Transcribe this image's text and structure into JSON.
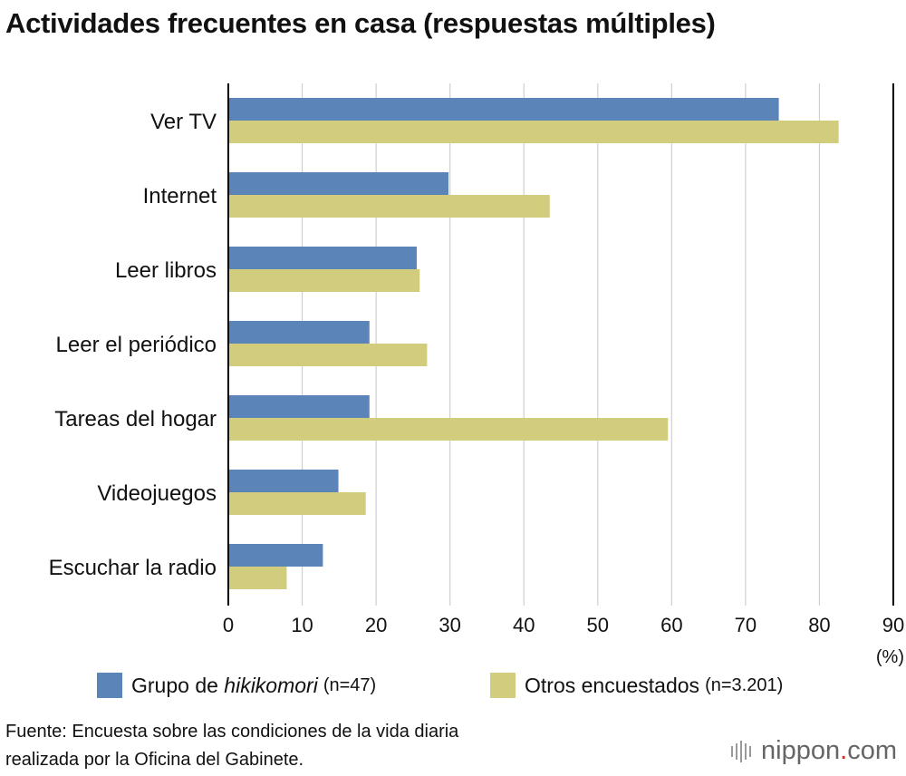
{
  "title": "Actividades frecuentes en casa (respuestas múltiples)",
  "chart_data": {
    "type": "bar",
    "orientation": "horizontal",
    "categories": [
      "Ver TV",
      "Internet",
      "Leer libros",
      "Leer el periódico",
      "Tareas del hogar",
      "Videojuegos",
      "Escuchar la radio"
    ],
    "series": [
      {
        "name": "Grupo de hikikomori",
        "n_label": "(n=47)",
        "color": "#5b85b9",
        "values": [
          74.5,
          29.8,
          25.5,
          19.1,
          19.1,
          14.9,
          12.8
        ]
      },
      {
        "name": "Otros encuestados",
        "n_label": "(n=3.201)",
        "color": "#d2cc7d",
        "values": [
          82.6,
          43.5,
          25.9,
          26.9,
          59.5,
          18.6,
          7.9
        ]
      }
    ],
    "xlim": [
      0,
      90
    ],
    "xticks": [
      0,
      10,
      20,
      30,
      40,
      50,
      60,
      70,
      80,
      90
    ],
    "xlabel": "(%)",
    "grid": true,
    "legend": "bottom"
  },
  "legend": {
    "item1_prefix": "Grupo de ",
    "item1_italic": "hikikomori",
    "item1_n": "(n=47)",
    "item2_label": "Otros encuestados",
    "item2_n": "(n=3.201)"
  },
  "source": {
    "line1": "Fuente: Encuesta sobre las condiciones de la vida diaria",
    "line2": "realizada por la Oficina del Gabinete."
  },
  "logo": {
    "part1": "nippon",
    "dot": ".",
    "part2": "com"
  }
}
